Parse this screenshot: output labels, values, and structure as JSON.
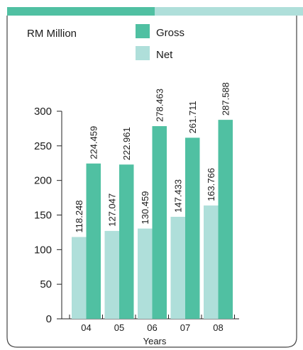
{
  "colors": {
    "gross": "#50c0a2",
    "net": "#afdfda",
    "top_band_dark": "#50c0a2",
    "top_band_light": "#afdfda",
    "frame": "#444444"
  },
  "chart_data": {
    "type": "bar",
    "ylabel": "RM Million",
    "xlabel": "Years",
    "categories": [
      "04",
      "05",
      "06",
      "07",
      "08"
    ],
    "ylim": [
      0,
      300
    ],
    "yticks": [
      0,
      50,
      100,
      150,
      200,
      250,
      300
    ],
    "legend_position": "top",
    "series": [
      {
        "name": "Net",
        "color": "#afdfda",
        "values": [
          118.248,
          127.047,
          130.459,
          147.433,
          163.766
        ]
      },
      {
        "name": "Gross",
        "color": "#50c0a2",
        "values": [
          224.459,
          222.961,
          278.463,
          261.711,
          287.588
        ]
      }
    ],
    "value_labels": {
      "net": [
        "118.248",
        "127.047",
        "130.459",
        "147.433",
        "163.766"
      ],
      "gross": [
        "224.459",
        "222.961",
        "278.463",
        "261.711",
        "287.588"
      ]
    },
    "legend": {
      "gross": "Gross",
      "net": "Net"
    }
  }
}
